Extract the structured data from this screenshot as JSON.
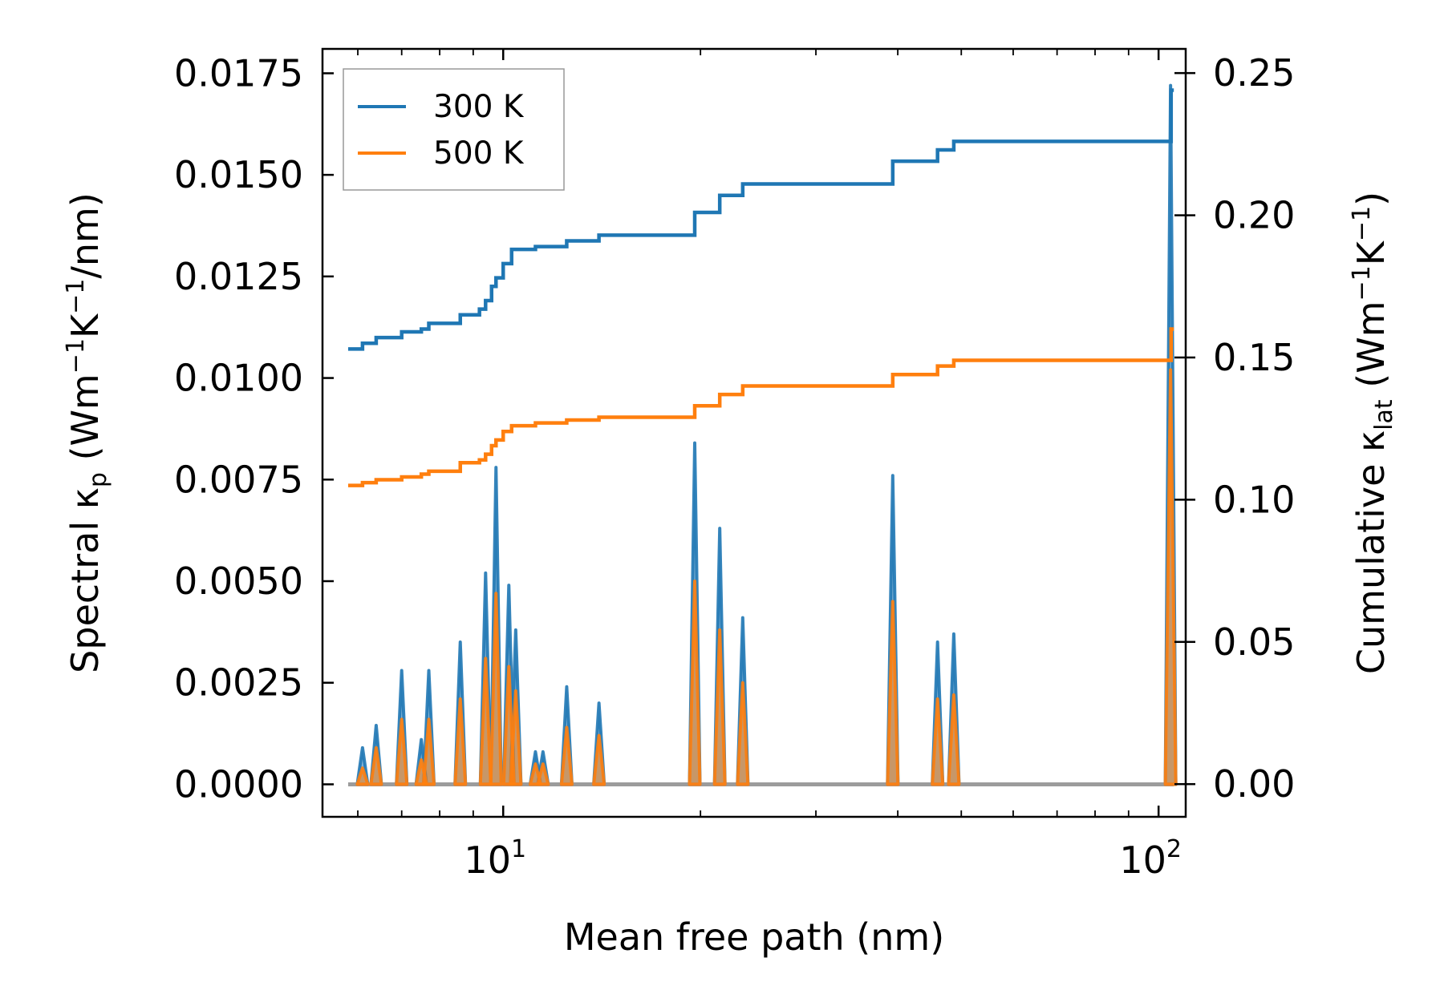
{
  "chart_data": {
    "type": "line",
    "xscale": "log",
    "xlabel": "Mean free path (nm)",
    "ylabel_left": "Spectral κp (Wm−1K−1/nm)",
    "ylabel_right": "Cumulative κlat (Wm−1K−1)",
    "xlim": [
      5.3,
      110
    ],
    "ylim_left": [
      -0.0008,
      0.0181
    ],
    "ylim_right": [
      -0.0115,
      0.2585
    ],
    "x_ticks": [
      {
        "value": 10,
        "label": "10",
        "exp": "1"
      },
      {
        "value": 100,
        "label": "10",
        "exp": "2"
      }
    ],
    "y_left_ticks": [
      {
        "value": 0.0,
        "label": "0.0000"
      },
      {
        "value": 0.0025,
        "label": "0.0025"
      },
      {
        "value": 0.005,
        "label": "0.0050"
      },
      {
        "value": 0.0075,
        "label": "0.0075"
      },
      {
        "value": 0.01,
        "label": "0.0100"
      },
      {
        "value": 0.0125,
        "label": "0.0125"
      },
      {
        "value": 0.015,
        "label": "0.0150"
      },
      {
        "value": 0.0175,
        "label": "0.0175"
      }
    ],
    "y_right_ticks": [
      {
        "value": 0.0,
        "label": "0.00"
      },
      {
        "value": 0.05,
        "label": "0.05"
      },
      {
        "value": 0.1,
        "label": "0.10"
      },
      {
        "value": 0.15,
        "label": "0.15"
      },
      {
        "value": 0.2,
        "label": "0.20"
      },
      {
        "value": 0.25,
        "label": "0.25"
      }
    ],
    "legend": [
      {
        "name": "300 K",
        "color": "#1f77b4"
      },
      {
        "name": "500 K",
        "color": "#ff7f0e"
      }
    ],
    "spectral_range": [
      5.8,
      105.5
    ],
    "spectral_peaks": {
      "300 K": [
        [
          6.1,
          0.0009
        ],
        [
          6.4,
          0.00145
        ],
        [
          7.0,
          0.0028
        ],
        [
          7.5,
          0.0011
        ],
        [
          7.7,
          0.0028
        ],
        [
          8.6,
          0.0035
        ],
        [
          9.4,
          0.0052
        ],
        [
          9.75,
          0.0078
        ],
        [
          10.2,
          0.0049
        ],
        [
          10.45,
          0.0038
        ],
        [
          11.2,
          0.0008
        ],
        [
          11.5,
          0.0008
        ],
        [
          12.5,
          0.0024
        ],
        [
          14.0,
          0.002
        ],
        [
          19.6,
          0.0084
        ],
        [
          21.4,
          0.0063
        ],
        [
          23.2,
          0.0041
        ],
        [
          39.3,
          0.0076
        ],
        [
          46.0,
          0.0035
        ],
        [
          48.7,
          0.0037
        ],
        [
          104.3,
          0.0172
        ]
      ],
      "500 K": [
        [
          6.1,
          0.0004
        ],
        [
          6.4,
          0.0009
        ],
        [
          7.0,
          0.0016
        ],
        [
          7.5,
          0.0006
        ],
        [
          7.7,
          0.0016
        ],
        [
          8.6,
          0.0021
        ],
        [
          9.4,
          0.0031
        ],
        [
          9.75,
          0.0047
        ],
        [
          10.2,
          0.0029
        ],
        [
          10.45,
          0.0023
        ],
        [
          11.2,
          0.0005
        ],
        [
          11.5,
          0.0005
        ],
        [
          12.5,
          0.0014
        ],
        [
          14.0,
          0.0012
        ],
        [
          19.6,
          0.005
        ],
        [
          21.4,
          0.0038
        ],
        [
          23.2,
          0.0025
        ],
        [
          39.3,
          0.0045
        ],
        [
          46.0,
          0.0021
        ],
        [
          48.7,
          0.0022
        ],
        [
          104.3,
          0.0102
        ]
      ]
    },
    "cumulative": {
      "300 K": [
        [
          5.8,
          0.153
        ],
        [
          6.1,
          0.155
        ],
        [
          6.4,
          0.157
        ],
        [
          7.0,
          0.159
        ],
        [
          7.5,
          0.16
        ],
        [
          7.7,
          0.162
        ],
        [
          8.6,
          0.165
        ],
        [
          9.2,
          0.167
        ],
        [
          9.4,
          0.17
        ],
        [
          9.6,
          0.175
        ],
        [
          9.75,
          0.178
        ],
        [
          10.0,
          0.183
        ],
        [
          10.3,
          0.188
        ],
        [
          11.2,
          0.189
        ],
        [
          12.5,
          0.191
        ],
        [
          14.0,
          0.193
        ],
        [
          19.6,
          0.201
        ],
        [
          21.4,
          0.207
        ],
        [
          23.2,
          0.211
        ],
        [
          39.3,
          0.219
        ],
        [
          46.0,
          0.223
        ],
        [
          48.7,
          0.226
        ],
        [
          103.0,
          0.226
        ],
        [
          104.5,
          0.244
        ],
        [
          105.5,
          0.244
        ]
      ],
      "500 K": [
        [
          5.8,
          0.105
        ],
        [
          6.1,
          0.106
        ],
        [
          6.4,
          0.107
        ],
        [
          7.0,
          0.108
        ],
        [
          7.5,
          0.109
        ],
        [
          7.7,
          0.11
        ],
        [
          8.6,
          0.113
        ],
        [
          9.2,
          0.114
        ],
        [
          9.4,
          0.116
        ],
        [
          9.6,
          0.119
        ],
        [
          9.75,
          0.121
        ],
        [
          10.0,
          0.124
        ],
        [
          10.3,
          0.126
        ],
        [
          11.2,
          0.127
        ],
        [
          12.5,
          0.128
        ],
        [
          14.0,
          0.129
        ],
        [
          19.6,
          0.133
        ],
        [
          21.4,
          0.137
        ],
        [
          23.2,
          0.14
        ],
        [
          39.3,
          0.144
        ],
        [
          46.0,
          0.147
        ],
        [
          48.7,
          0.149
        ],
        [
          103.0,
          0.149
        ],
        [
          104.5,
          0.16
        ],
        [
          105.5,
          0.16
        ]
      ]
    }
  }
}
